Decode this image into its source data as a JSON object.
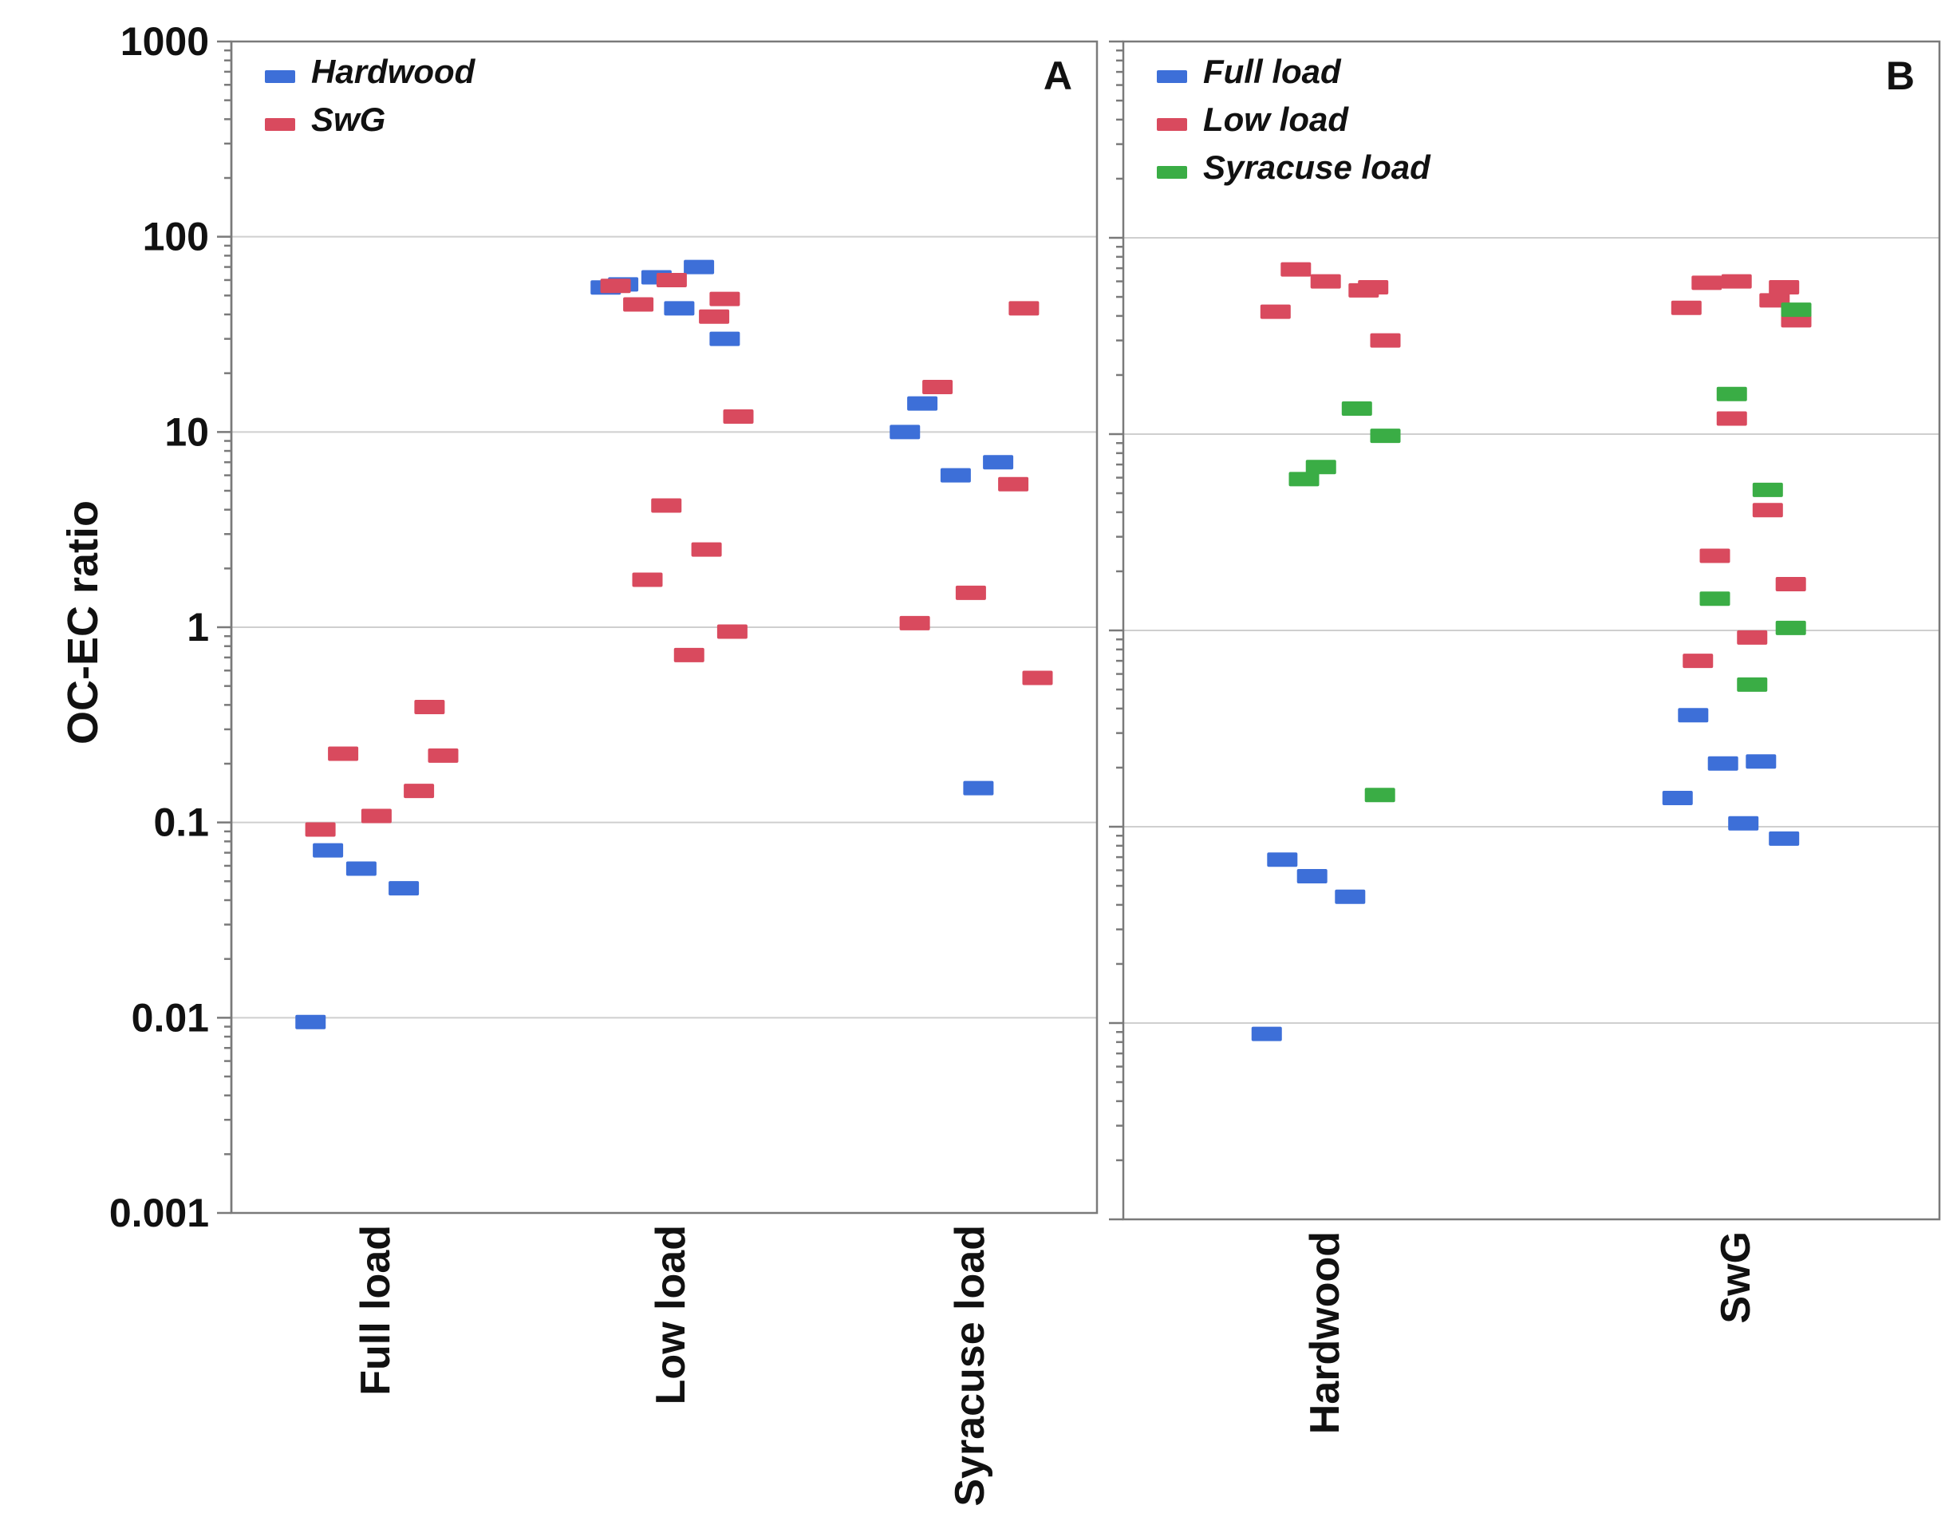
{
  "chart_data": [
    {
      "panel": "A",
      "type": "scatter",
      "ylabel": "OC-EC ratio",
      "yscale": "log",
      "ylim": [
        0.001,
        1000
      ],
      "yticks": [
        "1000",
        "100",
        "10",
        "1",
        "0.1",
        "0.01",
        "0.001"
      ],
      "categories": [
        "Full load",
        "Low load",
        "Syracuse load"
      ],
      "legend_position": "top-left",
      "series": [
        {
          "name": "Hardwood",
          "color": "#3d6fd8",
          "points": [
            {
              "category": "Full load",
              "y": 0.072
            },
            {
              "category": "Full load",
              "y": 0.058
            },
            {
              "category": "Full load",
              "y": 0.046
            },
            {
              "category": "Full load",
              "y": 0.0095
            },
            {
              "category": "Low load",
              "y": 57
            },
            {
              "category": "Low load",
              "y": 62
            },
            {
              "category": "Low load",
              "y": 70
            },
            {
              "category": "Low load",
              "y": 55
            },
            {
              "category": "Low load",
              "y": 43
            },
            {
              "category": "Low load",
              "y": 30
            },
            {
              "category": "Syracuse load",
              "y": 14
            },
            {
              "category": "Syracuse load",
              "y": 6
            },
            {
              "category": "Syracuse load",
              "y": 7
            },
            {
              "category": "Syracuse load",
              "y": 10
            },
            {
              "category": "Syracuse load",
              "y": 0.15
            }
          ]
        },
        {
          "name": "SwG",
          "color": "#d94a5e",
          "points": [
            {
              "category": "Full load",
              "y": 0.39
            },
            {
              "category": "Full load",
              "y": 0.225
            },
            {
              "category": "Full load",
              "y": 0.145
            },
            {
              "category": "Full load",
              "y": 0.108
            },
            {
              "category": "Full load",
              "y": 0.092
            },
            {
              "category": "Full load",
              "y": 0.22
            },
            {
              "category": "Low load",
              "y": 48
            },
            {
              "category": "Low load",
              "y": 45
            },
            {
              "category": "Low load",
              "y": 39
            },
            {
              "category": "Low load",
              "y": 60
            },
            {
              "category": "Low load",
              "y": 56
            },
            {
              "category": "Low load",
              "y": 12
            },
            {
              "category": "Low load",
              "y": 4.2
            },
            {
              "category": "Low load",
              "y": 2.5
            },
            {
              "category": "Low load",
              "y": 1.75
            },
            {
              "category": "Low load",
              "y": 0.95
            },
            {
              "category": "Low load",
              "y": 0.72
            },
            {
              "category": "Syracuse load",
              "y": 43
            },
            {
              "category": "Syracuse load",
              "y": 17
            },
            {
              "category": "Syracuse load",
              "y": 5.4
            },
            {
              "category": "Syracuse load",
              "y": 1.5
            },
            {
              "category": "Syracuse load",
              "y": 1.05
            },
            {
              "category": "Syracuse load",
              "y": 0.55
            }
          ]
        }
      ]
    },
    {
      "panel": "B",
      "type": "scatter",
      "yscale": "log",
      "ylim": [
        0.001,
        1000
      ],
      "categories": [
        "Hardwood",
        "SwG"
      ],
      "legend_position": "top-left",
      "series": [
        {
          "name": "Full load",
          "color": "#3d6fd8",
          "points": [
            {
              "category": "Hardwood",
              "y": 0.068
            },
            {
              "category": "Hardwood",
              "y": 0.056
            },
            {
              "category": "Hardwood",
              "y": 0.044
            },
            {
              "category": "Hardwood",
              "y": 0.0088
            },
            {
              "category": "SwG",
              "y": 0.37
            },
            {
              "category": "SwG",
              "y": 0.21
            },
            {
              "category": "SwG",
              "y": 0.215
            },
            {
              "category": "SwG",
              "y": 0.14
            },
            {
              "category": "SwG",
              "y": 0.104
            },
            {
              "category": "SwG",
              "y": 0.087
            }
          ]
        },
        {
          "name": "Low load",
          "color": "#d94a5e",
          "points": [
            {
              "category": "Hardwood",
              "y": 56
            },
            {
              "category": "Hardwood",
              "y": 69
            },
            {
              "category": "Hardwood",
              "y": 54
            },
            {
              "category": "Hardwood",
              "y": 60
            },
            {
              "category": "Hardwood",
              "y": 42
            },
            {
              "category": "Hardwood",
              "y": 30
            },
            {
              "category": "SwG",
              "y": 56
            },
            {
              "category": "SwG",
              "y": 59
            },
            {
              "category": "SwG",
              "y": 48
            },
            {
              "category": "SwG",
              "y": 60
            },
            {
              "category": "SwG",
              "y": 44
            },
            {
              "category": "SwG",
              "y": 38
            },
            {
              "category": "SwG",
              "y": 12
            },
            {
              "category": "SwG",
              "y": 4.1
            },
            {
              "category": "SwG",
              "y": 2.4
            },
            {
              "category": "SwG",
              "y": 1.72
            },
            {
              "category": "SwG",
              "y": 0.92
            },
            {
              "category": "SwG",
              "y": 0.7
            }
          ]
        },
        {
          "name": "Syracuse load",
          "color": "#3aad45",
          "points": [
            {
              "category": "Hardwood",
              "y": 9.8
            },
            {
              "category": "Hardwood",
              "y": 6.8
            },
            {
              "category": "Hardwood",
              "y": 13.5
            },
            {
              "category": "Hardwood",
              "y": 5.9
            },
            {
              "category": "Hardwood",
              "y": 0.145
            },
            {
              "category": "SwG",
              "y": 43
            },
            {
              "category": "SwG",
              "y": 16
            },
            {
              "category": "SwG",
              "y": 5.2
            },
            {
              "category": "SwG",
              "y": 1.45
            },
            {
              "category": "SwG",
              "y": 1.03
            },
            {
              "category": "SwG",
              "y": 0.53
            }
          ]
        }
      ]
    }
  ]
}
